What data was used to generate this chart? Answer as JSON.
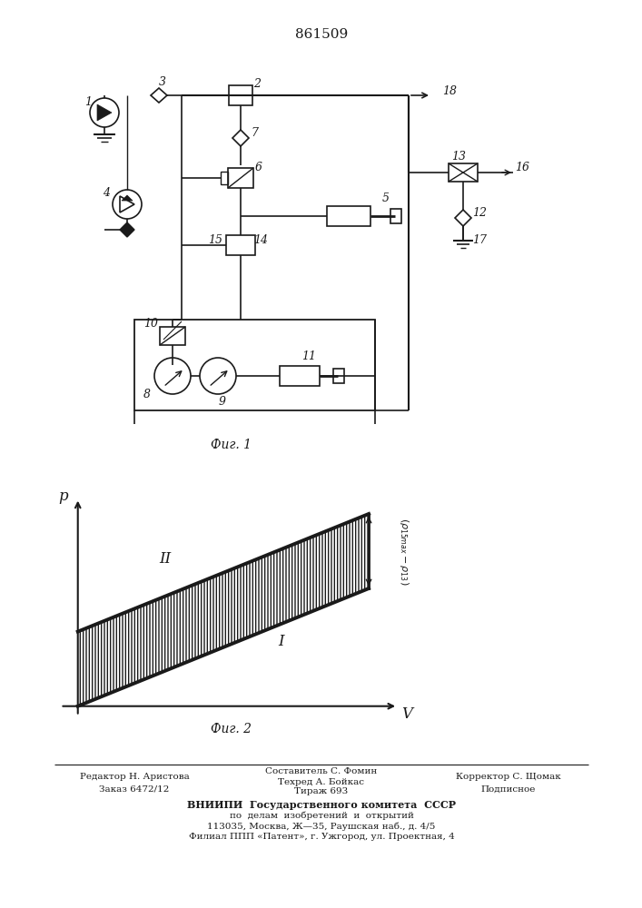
{
  "patent_number": "861509",
  "fig1_caption": "Фиг. 1",
  "fig2_caption": "Фиг. 2",
  "fig2_xlabel": "V",
  "fig2_ylabel": "p",
  "fig2_label_I": "I",
  "fig2_label_II": "II",
  "fig2_brace_label": "(ρ15max-ρ13)",
  "footer_line1_left": "Редактор Н. Аристова",
  "footer_line2_left": "Заказ 6472/12",
  "footer_line1_center": "Составитель С. Фомин",
  "footer_line2_center": "Техред А. Бойкас",
  "footer_line3_center": "Тираж 693",
  "footer_line1_right": "Корректор С. Щомак",
  "footer_line2_right": "Подписное",
  "footer_vniipii": "ВНИИПИ  Государственного комитета  СССР",
  "footer_po": "по  делам  изобретений  и  открытий",
  "footer_address": "113035, Москва, Ж—35, Раушская наб., д. 4/5",
  "footer_filial": "Филиал ППП «Патент», г. Ужгород, ул. Проектная, 4",
  "bg_color": "#ffffff",
  "line_color": "#1a1a1a"
}
